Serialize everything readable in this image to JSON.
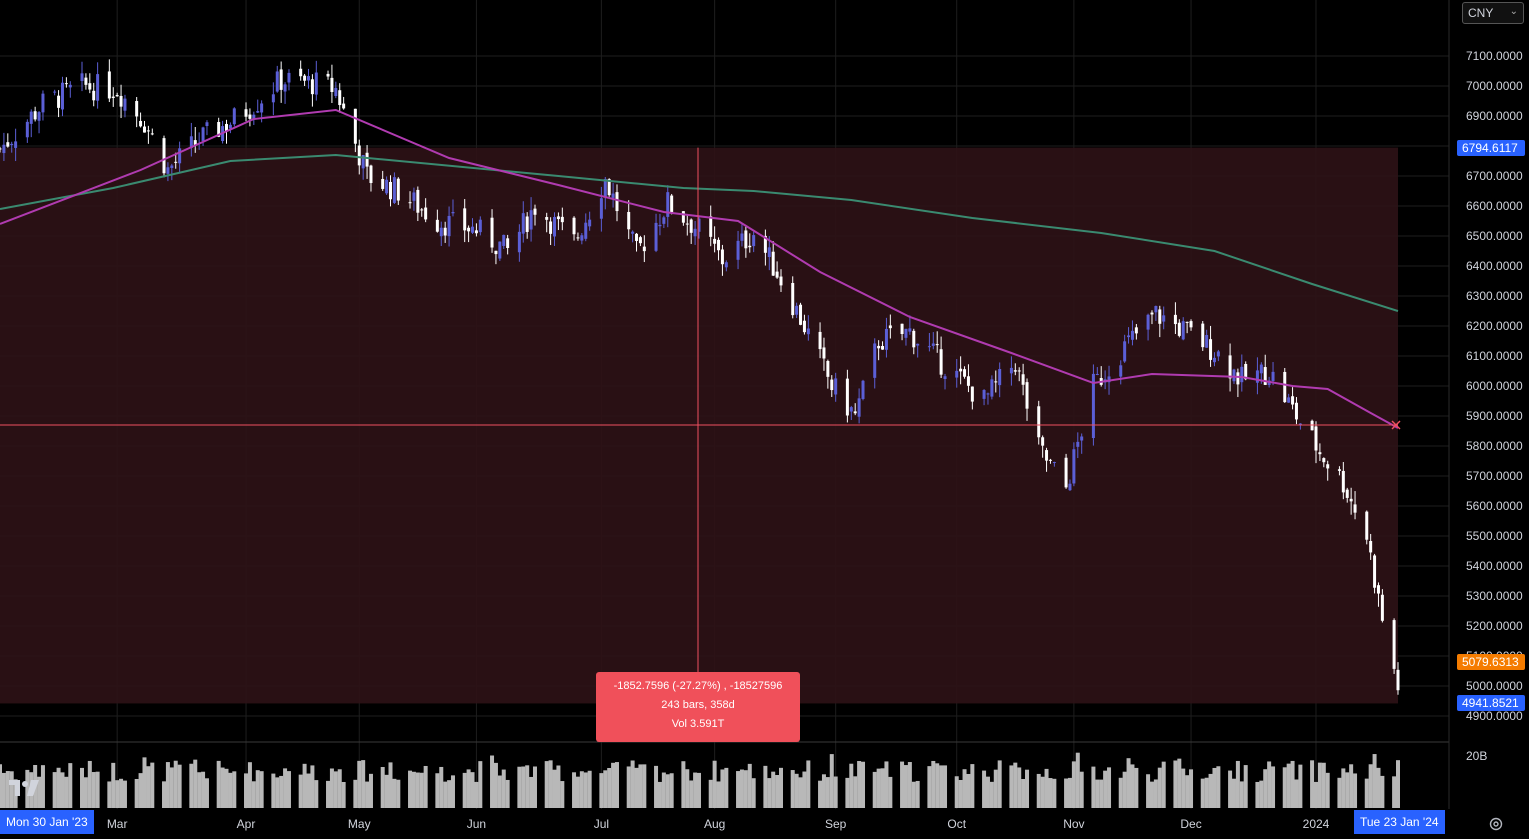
{
  "currency": "CNY",
  "chart_data": {
    "type": "candlestick",
    "x_ticks": [
      "Mar",
      "Apr",
      "May",
      "Jun",
      "Jul",
      "Aug",
      "Sep",
      "Oct",
      "Nov",
      "Dec",
      "2024"
    ],
    "y_ticks": [
      "7100.0000",
      "7000.0000",
      "6900.0000",
      "6800.0000",
      "6700.0000",
      "6600.0000",
      "6500.0000",
      "6400.0000",
      "6300.0000",
      "6200.0000",
      "6100.0000",
      "6000.0000",
      "5900.0000",
      "5800.0000",
      "5700.0000",
      "5600.0000",
      "5500.0000",
      "5400.0000",
      "5300.0000",
      "5200.0000",
      "5100.0000",
      "5000.0000",
      "4900.0000"
    ],
    "ylim": [
      4880,
      7170
    ],
    "close_series": [
      {
        "date": "2023-01-30",
        "value": 6790
      },
      {
        "date": "2023-02-10",
        "value": 6940
      },
      {
        "date": "2023-02-20",
        "value": 7000
      },
      {
        "date": "2023-03-01",
        "value": 6990
      },
      {
        "date": "2023-03-08",
        "value": 6880
      },
      {
        "date": "2023-03-14",
        "value": 6720
      },
      {
        "date": "2023-03-22",
        "value": 6820
      },
      {
        "date": "2023-03-30",
        "value": 6880
      },
      {
        "date": "2023-04-06",
        "value": 6950
      },
      {
        "date": "2023-04-12",
        "value": 7020
      },
      {
        "date": "2023-04-20",
        "value": 7010
      },
      {
        "date": "2023-04-26",
        "value": 6990
      },
      {
        "date": "2023-05-04",
        "value": 6700
      },
      {
        "date": "2023-05-12",
        "value": 6650
      },
      {
        "date": "2023-05-22",
        "value": 6550
      },
      {
        "date": "2023-06-01",
        "value": 6520
      },
      {
        "date": "2023-06-09",
        "value": 6450
      },
      {
        "date": "2023-06-16",
        "value": 6600
      },
      {
        "date": "2023-06-26",
        "value": 6480
      },
      {
        "date": "2023-07-04",
        "value": 6690
      },
      {
        "date": "2023-07-12",
        "value": 6440
      },
      {
        "date": "2023-07-20",
        "value": 6610
      },
      {
        "date": "2023-07-28",
        "value": 6520
      },
      {
        "date": "2023-08-03",
        "value": 6420
      },
      {
        "date": "2023-08-11",
        "value": 6510
      },
      {
        "date": "2023-08-17",
        "value": 6380
      },
      {
        "date": "2023-08-24",
        "value": 6200
      },
      {
        "date": "2023-08-31",
        "value": 6000
      },
      {
        "date": "2023-09-06",
        "value": 5900
      },
      {
        "date": "2023-09-12",
        "value": 6150
      },
      {
        "date": "2023-09-20",
        "value": 6180
      },
      {
        "date": "2023-09-28",
        "value": 6080
      },
      {
        "date": "2023-10-09",
        "value": 5950
      },
      {
        "date": "2023-10-17",
        "value": 6080
      },
      {
        "date": "2023-10-23",
        "value": 5790
      },
      {
        "date": "2023-10-30",
        "value": 5660
      },
      {
        "date": "2023-11-06",
        "value": 6000
      },
      {
        "date": "2023-11-14",
        "value": 6130
      },
      {
        "date": "2023-11-22",
        "value": 6240
      },
      {
        "date": "2023-11-30",
        "value": 6180
      },
      {
        "date": "2023-12-07",
        "value": 6120
      },
      {
        "date": "2023-12-14",
        "value": 6020
      },
      {
        "date": "2023-12-21",
        "value": 6050
      },
      {
        "date": "2023-12-28",
        "value": 5900
      },
      {
        "date": "2024-01-03",
        "value": 5780
      },
      {
        "date": "2024-01-09",
        "value": 5680
      },
      {
        "date": "2024-01-15",
        "value": 5500
      },
      {
        "date": "2024-01-19",
        "value": 5220
      },
      {
        "date": "2024-01-23",
        "value": 5000
      }
    ],
    "ma_short": [
      {
        "date": "2023-01-30",
        "value": 6540
      },
      {
        "date": "2023-03-07",
        "value": 6720
      },
      {
        "date": "2023-04-05",
        "value": 6890
      },
      {
        "date": "2023-04-26",
        "value": 6920
      },
      {
        "date": "2023-05-25",
        "value": 6760
      },
      {
        "date": "2023-06-22",
        "value": 6670
      },
      {
        "date": "2023-07-19",
        "value": 6580
      },
      {
        "date": "2023-08-07",
        "value": 6550
      },
      {
        "date": "2023-08-28",
        "value": 6380
      },
      {
        "date": "2023-09-20",
        "value": 6230
      },
      {
        "date": "2023-10-16",
        "value": 6110
      },
      {
        "date": "2023-11-06",
        "value": 6010
      },
      {
        "date": "2023-11-21",
        "value": 6040
      },
      {
        "date": "2023-12-14",
        "value": 6030
      },
      {
        "date": "2023-12-27",
        "value": 6000
      },
      {
        "date": "2024-01-05",
        "value": 5990
      },
      {
        "date": "2024-01-16",
        "value": 5910
      },
      {
        "date": "2024-01-23",
        "value": 5860
      }
    ],
    "ma_long": [
      {
        "date": "2023-01-30",
        "value": 6590
      },
      {
        "date": "2023-02-28",
        "value": 6660
      },
      {
        "date": "2023-03-30",
        "value": 6750
      },
      {
        "date": "2023-04-26",
        "value": 6770
      },
      {
        "date": "2023-06-22",
        "value": 6700
      },
      {
        "date": "2023-07-24",
        "value": 6660
      },
      {
        "date": "2023-08-11",
        "value": 6650
      },
      {
        "date": "2023-09-05",
        "value": 6620
      },
      {
        "date": "2023-10-06",
        "value": 6560
      },
      {
        "date": "2023-11-08",
        "value": 6510
      },
      {
        "date": "2023-12-07",
        "value": 6450
      },
      {
        "date": "2024-01-01",
        "value": 6340
      },
      {
        "date": "2024-01-23",
        "value": 6250
      }
    ],
    "volume_label": "20B",
    "measure_range": {
      "top": 6794.6117,
      "bottom": 4941.8521
    },
    "crosshair_price": 5870,
    "price_tags": [
      {
        "label": "6794.6117",
        "value": 6794.6117,
        "color": "#2962ff"
      },
      {
        "label": "5079.6313",
        "value": 5079.6313,
        "color": "#f57c00"
      },
      {
        "label": "4941.8521",
        "value": 4941.8521,
        "color": "#2962ff"
      }
    ],
    "measure_tooltip": {
      "line1": "-1852.7596 (-27.27%) , -18527596",
      "line2": "243 bars, 358d",
      "line3": "Vol 3.591T"
    },
    "date_start": "Mon 30 Jan '23",
    "date_end": "Tue 23 Jan '24",
    "colors": {
      "up": "#5b5fd6",
      "down": "#ffffff",
      "ma_short": "#b03bb0",
      "ma_long": "#3a8a70",
      "measure_fill": "#2e1216",
      "crosshair": "#f05060",
      "volume": "#b8b8b8"
    }
  }
}
